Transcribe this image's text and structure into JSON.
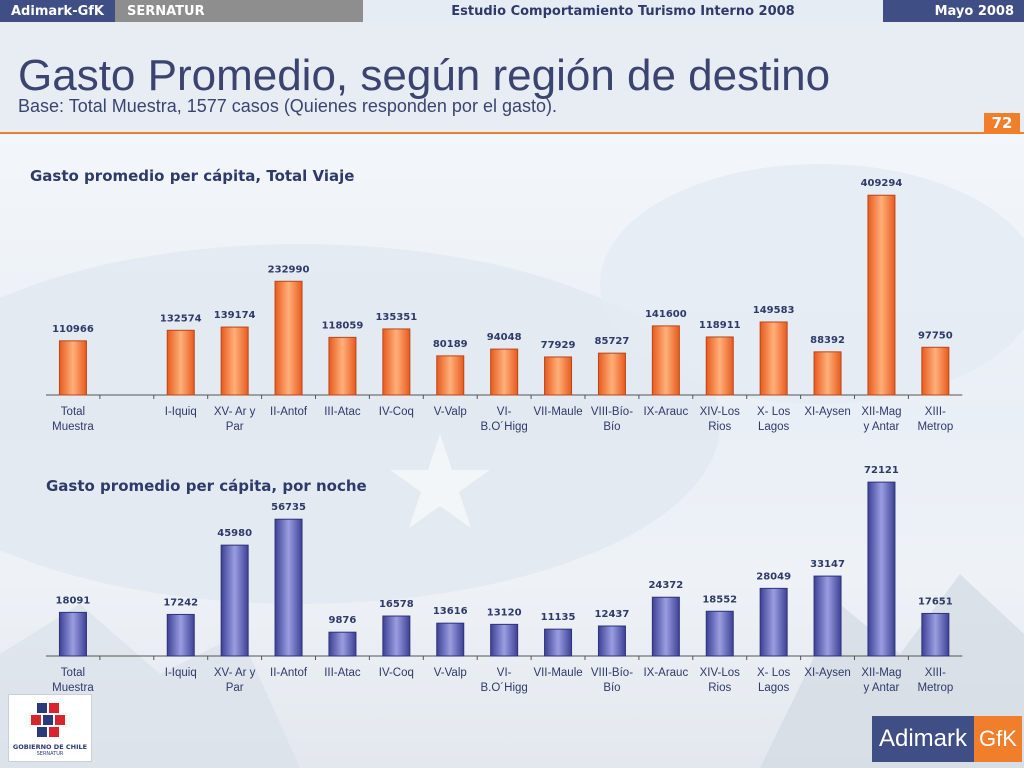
{
  "topbar": {
    "brand": "Adimark-GfK",
    "client": "SERNATUR",
    "study": "Estudio Comportamiento Turismo Interno 2008",
    "date": "Mayo 2008"
  },
  "header": {
    "title": "Gasto Promedio, según región de destino",
    "subtitle": "Base: Total Muestra, 1577 casos (Quienes responden por el gasto).",
    "page_number": "72"
  },
  "logos": {
    "gobierno": "GOBIERNO DE CHILE",
    "gobierno_sub": "SERNATUR",
    "adimark": "Adimark",
    "gfk": "GfK"
  },
  "colors": {
    "orange_bar": "#f47a3d",
    "blue_bar": "#5a5fb0",
    "accent": "#f07e2b",
    "navy": "#3f4f86"
  },
  "chart_data": [
    {
      "type": "bar",
      "title": "Gasto promedio per cápita, Total Viaje",
      "categories": [
        [
          "Total",
          "Muestra"
        ],
        [
          ""
        ],
        [
          "I-Iquiq"
        ],
        [
          "XV- Ar y",
          "Par"
        ],
        [
          "II-Antof"
        ],
        [
          "III-Atac"
        ],
        [
          "IV-Coq"
        ],
        [
          "V-Valp"
        ],
        [
          "VI-",
          "B.O´Higg"
        ],
        [
          "VII-Maule"
        ],
        [
          "VIII-Bío-",
          "Bío"
        ],
        [
          "IX-Arauc"
        ],
        [
          "XIV-Los",
          "Rios"
        ],
        [
          "X- Los",
          "Lagos"
        ],
        [
          "XI-Aysen"
        ],
        [
          "XII-Mag",
          "y Antar"
        ],
        [
          "XIII-",
          "Metrop"
        ]
      ],
      "values": [
        110966,
        null,
        132574,
        139174,
        232990,
        118059,
        135351,
        80189,
        94048,
        77929,
        85727,
        141600,
        118911,
        149583,
        88392,
        409294,
        97750
      ],
      "ylim": [
        0,
        420000
      ],
      "color": "#f47a3d",
      "grid": false,
      "data_labels": true
    },
    {
      "type": "bar",
      "title": "Gasto promedio per cápita, por noche",
      "categories": [
        [
          "Total",
          "Muestra"
        ],
        [
          ""
        ],
        [
          "I-Iquiq"
        ],
        [
          "XV- Ar y",
          "Par"
        ],
        [
          "II-Antof"
        ],
        [
          "III-Atac"
        ],
        [
          "IV-Coq"
        ],
        [
          "V-Valp"
        ],
        [
          "VI-",
          "B.O´Higg"
        ],
        [
          "VII-Maule"
        ],
        [
          "VIII-Bío-",
          "Bío"
        ],
        [
          "IX-Arauc"
        ],
        [
          "XIV-Los",
          "Rios"
        ],
        [
          "X- Los",
          "Lagos"
        ],
        [
          "XI-Aysen"
        ],
        [
          "XII-Mag",
          "y Antar"
        ],
        [
          "XIII-",
          "Metrop"
        ]
      ],
      "values": [
        18091,
        null,
        17242,
        45980,
        56735,
        9876,
        16578,
        13616,
        13120,
        11135,
        12437,
        24372,
        18552,
        28049,
        33147,
        72121,
        17651
      ],
      "ylim": [
        0,
        73000
      ],
      "color": "#5a5fb0",
      "grid": false,
      "data_labels": true
    }
  ]
}
